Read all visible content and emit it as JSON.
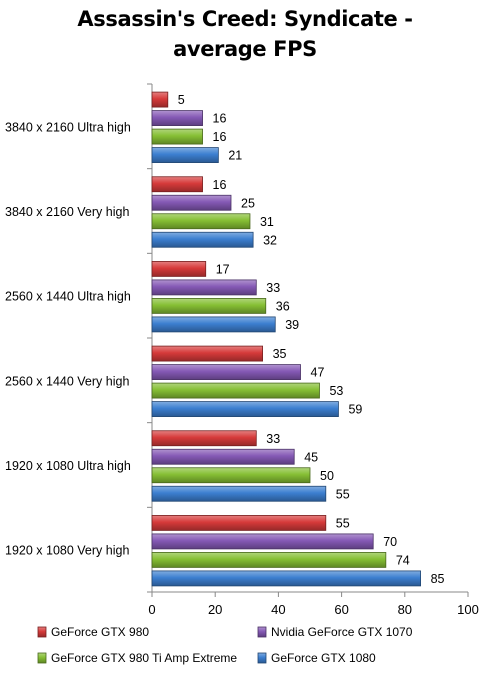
{
  "chart_data": {
    "type": "bar",
    "orientation": "horizontal",
    "title": [
      "Assassin's Creed: Syndicate -",
      "average FPS"
    ],
    "xlabel": "",
    "ylabel": "",
    "xlim": [
      0,
      100
    ],
    "x_ticks": [
      0,
      20,
      40,
      60,
      80,
      100
    ],
    "grid": false,
    "legend_position": "bottom",
    "categories": [
      "3840 x 2160 Ultra high",
      "3840 x 2160 Very high",
      "2560 x 1440 Ultra high",
      "2560 x 1440  Very high",
      "1920 x 1080 Ultra high",
      "1920 x 1080 Very high"
    ],
    "series": [
      {
        "name": "GeForce GTX 980",
        "color": "#d63a3a",
        "values": [
          5,
          16,
          17,
          35,
          33,
          55
        ]
      },
      {
        "name": "Nvidia GeForce GTX 1070",
        "color": "#8559b5",
        "values": [
          16,
          25,
          33,
          47,
          45,
          70
        ]
      },
      {
        "name": "GeForce GTX 980 Ti Amp Extreme",
        "color": "#86bf34",
        "values": [
          16,
          31,
          36,
          53,
          50,
          74
        ]
      },
      {
        "name": "GeForce GTX 1080",
        "color": "#3c7fd0",
        "values": [
          21,
          32,
          39,
          59,
          55,
          85
        ]
      }
    ]
  }
}
